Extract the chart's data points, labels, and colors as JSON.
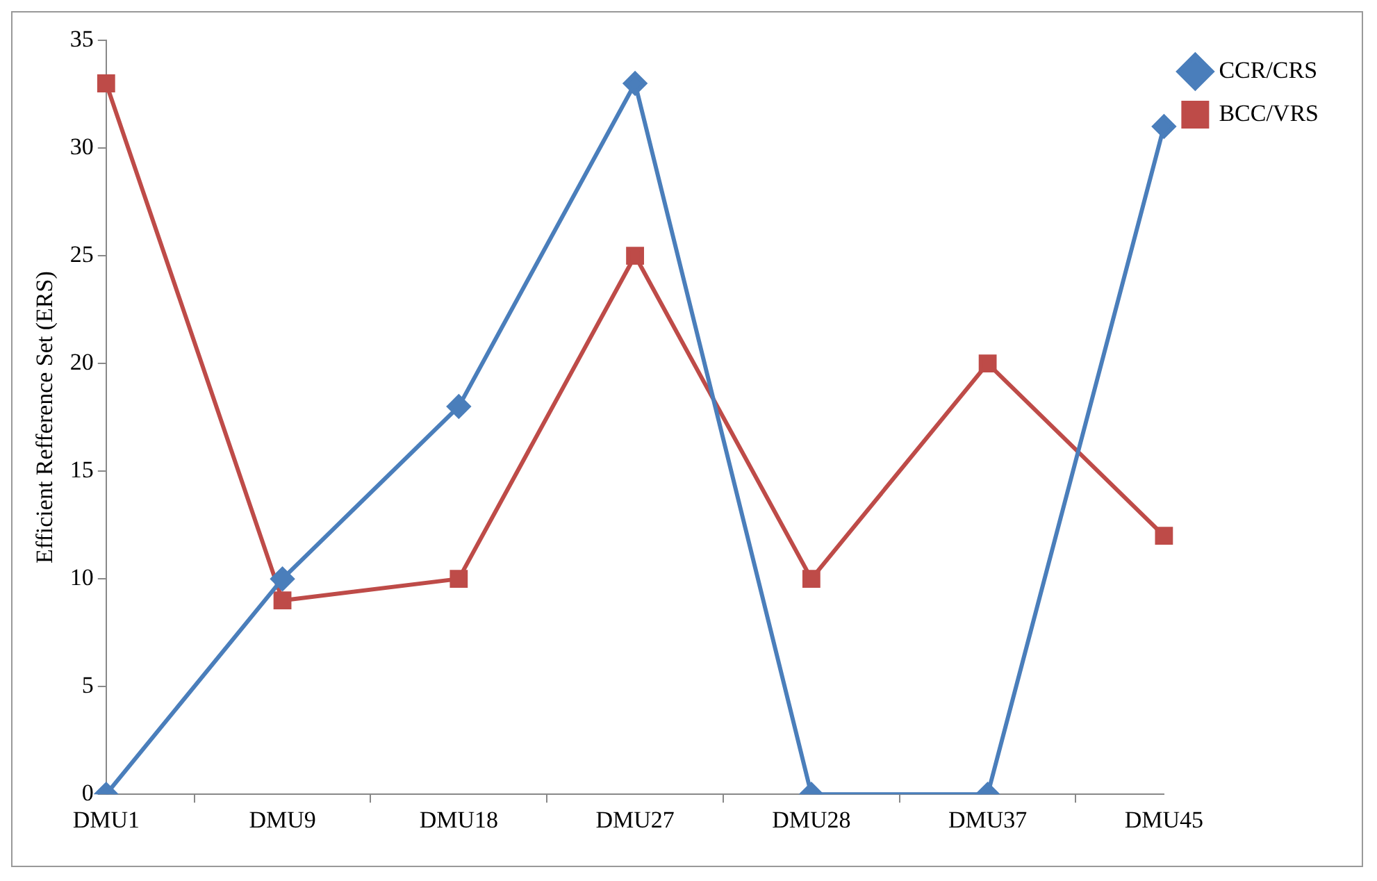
{
  "chart_data": {
    "type": "line",
    "ylabel": "Efficient Refference Set (ERS)",
    "categories": [
      "DMU1",
      "DMU9",
      "DMU18",
      "DMU27",
      "DMU28",
      "DMU37",
      "DMU45"
    ],
    "series": [
      {
        "name": "CCR/CRS",
        "color": "#4a7ebb",
        "marker": "diamond",
        "values": [
          0,
          10,
          18,
          33,
          0,
          0,
          31
        ]
      },
      {
        "name": "BCC/VRS",
        "color": "#be4b48",
        "marker": "square",
        "values": [
          33,
          9,
          10,
          25,
          10,
          20,
          12
        ]
      }
    ],
    "ylim": [
      0,
      35
    ],
    "yticks": [
      0,
      5,
      10,
      15,
      20,
      25,
      30,
      35
    ],
    "grid": false,
    "legend": "top right",
    "line_style": "solid"
  }
}
